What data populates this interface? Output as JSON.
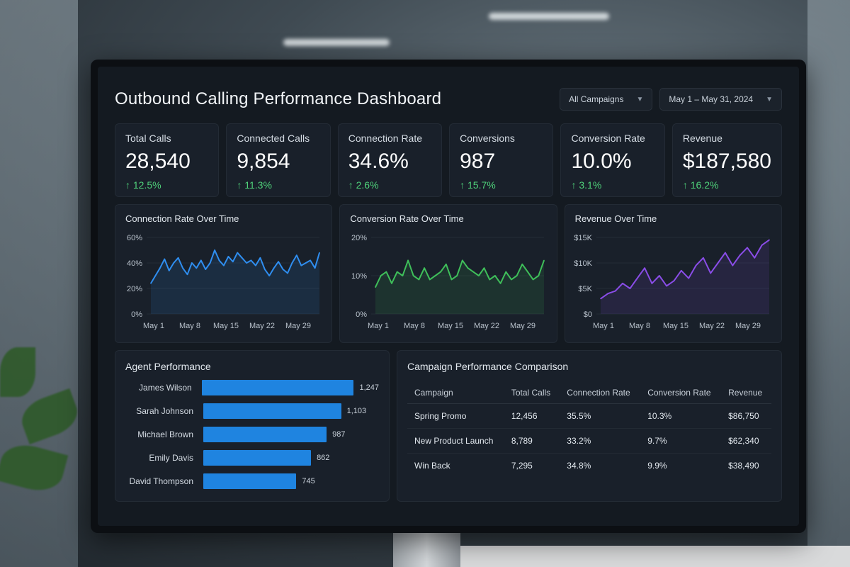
{
  "header": {
    "title": "Outbound Calling Performance Dashboard",
    "campaign_filter": "All Campaigns",
    "date_filter": "May 1 – May 31, 2024"
  },
  "kpis": [
    {
      "label": "Total Calls",
      "value": "28,540",
      "delta": "↑ 12.5%"
    },
    {
      "label": "Connected Calls",
      "value": "9,854",
      "delta": "↑ 11.3%"
    },
    {
      "label": "Connection Rate",
      "value": "34.6%",
      "delta": "↑ 2.6%"
    },
    {
      "label": "Conversions",
      "value": "987",
      "delta": "↑ 15.7%"
    },
    {
      "label": "Conversion Rate",
      "value": "10.0%",
      "delta": "↑ 3.1%"
    },
    {
      "label": "Revenue",
      "value": "$187,580",
      "delta": "↑ 16.2%"
    }
  ],
  "colors": {
    "blue": "#2f8ef0",
    "green": "#3fbf5a",
    "purple": "#8a4de8",
    "delta": "#4fd17a"
  },
  "chart_data": [
    {
      "type": "area",
      "title": "Connection Rate Over Time",
      "x_ticks": [
        "May 1",
        "May 8",
        "May 15",
        "May 22",
        "May 29"
      ],
      "y_ticks": [
        "0%",
        "20%",
        "40%",
        "60%"
      ],
      "ylim": [
        0,
        60
      ],
      "color": "#2f8ef0",
      "values": [
        24,
        30,
        36,
        43,
        34,
        40,
        44,
        36,
        31,
        40,
        36,
        42,
        35,
        40,
        50,
        42,
        38,
        45,
        41,
        48,
        44,
        40,
        42,
        38,
        44,
        35,
        30,
        36,
        41,
        35,
        32,
        40,
        46,
        38,
        40,
        42,
        36,
        48
      ]
    },
    {
      "type": "area",
      "title": "Conversion Rate Over Time",
      "x_ticks": [
        "May 1",
        "May 8",
        "May 15",
        "May 22",
        "May 29"
      ],
      "y_ticks": [
        "0%",
        "10%",
        "20%"
      ],
      "ylim": [
        0,
        20
      ],
      "color": "#3fbf5a",
      "values": [
        7,
        10,
        11,
        8,
        11,
        10,
        14,
        10,
        9,
        12,
        9,
        10,
        11,
        13,
        9,
        10,
        14,
        12,
        11,
        10,
        12,
        9,
        10,
        8,
        11,
        9,
        10,
        13,
        11,
        9,
        10,
        14
      ]
    },
    {
      "type": "area",
      "title": "Revenue Over Time",
      "x_ticks": [
        "May 1",
        "May 8",
        "May 15",
        "May 22",
        "May 29"
      ],
      "y_ticks": [
        "$0",
        "$5K",
        "$10K",
        "$15K"
      ],
      "ylim": [
        0,
        15000
      ],
      "color": "#8a4de8",
      "values": [
        3000,
        4000,
        4500,
        6000,
        5000,
        7000,
        9000,
        6000,
        7500,
        5500,
        6500,
        8500,
        7000,
        9500,
        11000,
        8000,
        10000,
        12000,
        9500,
        11500,
        13000,
        11000,
        13500,
        14500
      ]
    },
    {
      "type": "bar",
      "orientation": "horizontal",
      "title": "Agent Performance",
      "categories": [
        "James Wilson",
        "Sarah Johnson",
        "Michael Brown",
        "Emily Davis",
        "David Thompson"
      ],
      "values": [
        1247,
        1103,
        987,
        862,
        745
      ],
      "value_labels": [
        "1,247",
        "1,103",
        "987",
        "862",
        "745"
      ],
      "color": "#1f84e0"
    }
  ],
  "campaign_table": {
    "title": "Campaign Performance Comparison",
    "columns": [
      "Campaign",
      "Total Calls",
      "Connection Rate",
      "Conversion Rate",
      "Revenue"
    ],
    "rows": [
      [
        "Spring Promo",
        "12,456",
        "35.5%",
        "10.3%",
        "$86,750"
      ],
      [
        "New Product Launch",
        "8,789",
        "33.2%",
        "9.7%",
        "$62,340"
      ],
      [
        "Win Back",
        "7,295",
        "34.8%",
        "9.9%",
        "$38,490"
      ]
    ]
  }
}
